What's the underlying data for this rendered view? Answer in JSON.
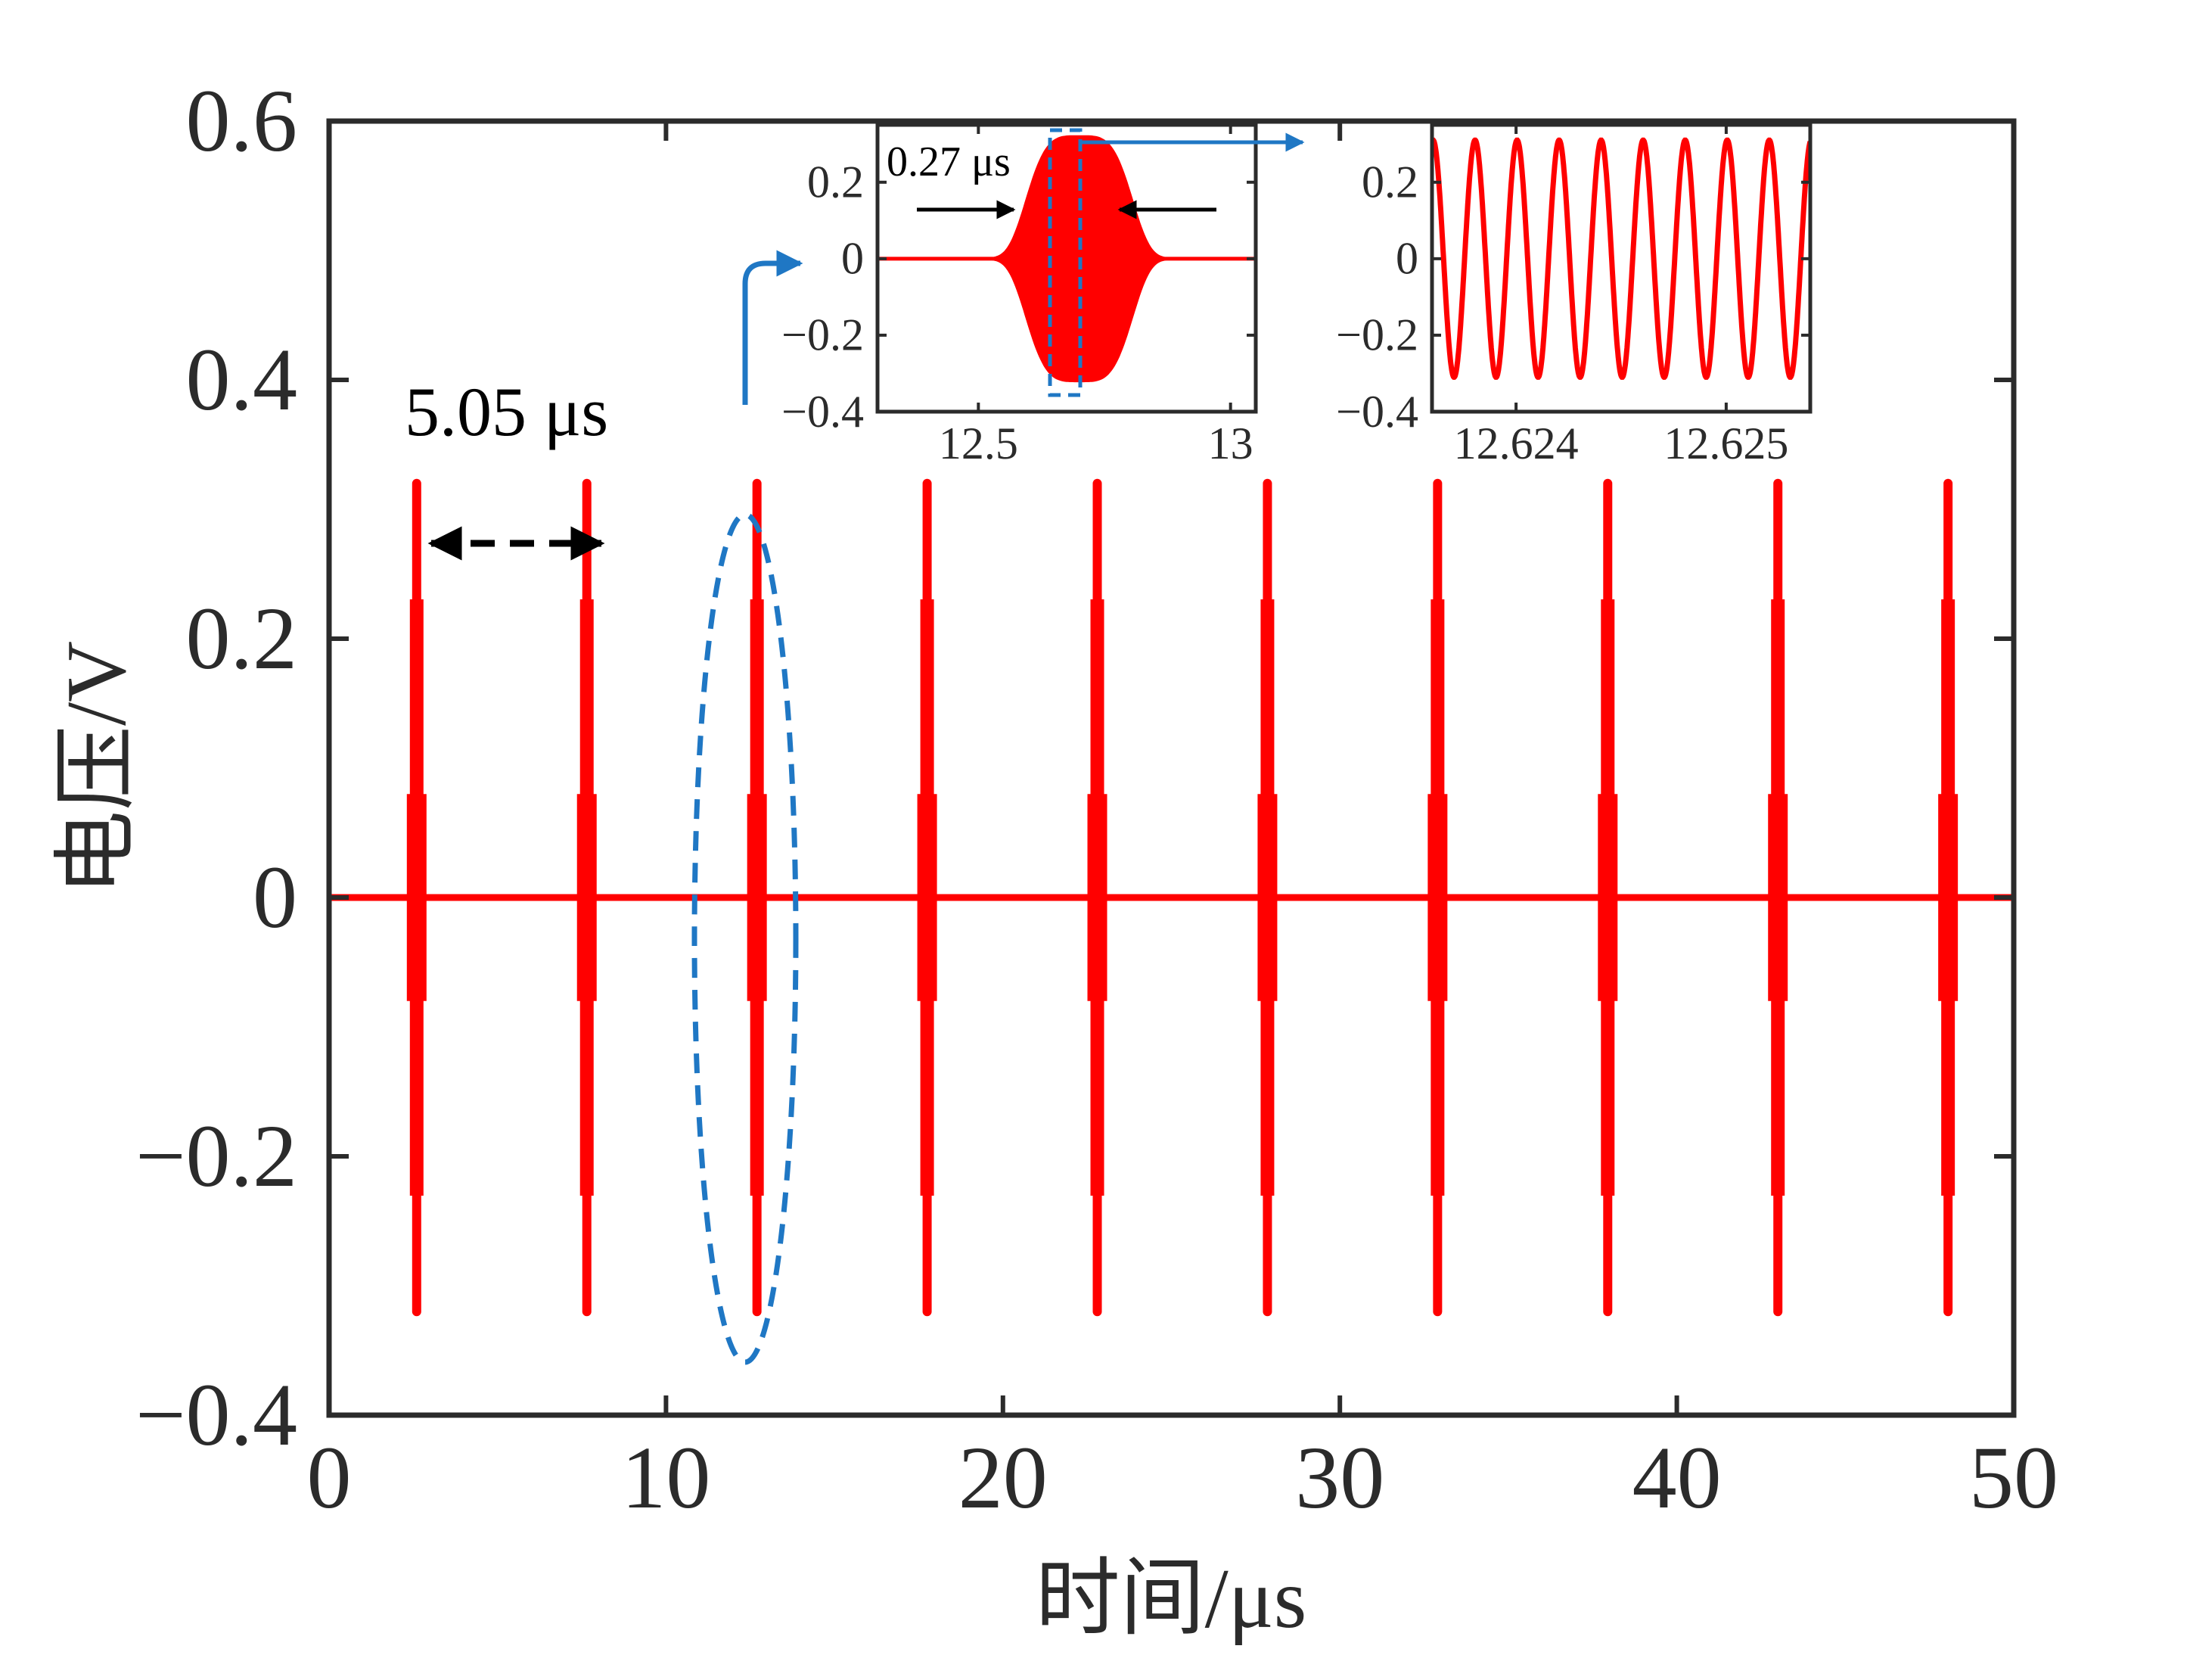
{
  "chart_data": [
    {
      "type": "line",
      "role": "main",
      "xlabel": "时间/μs",
      "ylabel": "电压/V",
      "xlim": [
        0,
        50
      ],
      "ylim": [
        -0.4,
        0.6
      ],
      "xticks": [
        0,
        10,
        20,
        30,
        40,
        50
      ],
      "xtick_labels": [
        "0",
        "10",
        "20",
        "30",
        "40",
        "50"
      ],
      "yticks": [
        -0.4,
        -0.2,
        0,
        0.2,
        0.4,
        0.6
      ],
      "ytick_labels": [
        "−0.4",
        "−0.2",
        "0",
        "0.2",
        "0.4",
        "0.6"
      ],
      "grid": false,
      "series": [
        {
          "color": "#ff0000",
          "pulse_centers": [
            2.6,
            7.65,
            12.7,
            17.75,
            22.8,
            27.85,
            32.9,
            37.95,
            43.0,
            48.05
          ],
          "pulse_amplitude": 0.32,
          "baseline": 0
        }
      ],
      "annotations": {
        "period": "5.05 μs"
      }
    },
    {
      "type": "line",
      "role": "inset-zoom-1",
      "xlim": [
        12.3,
        13.05
      ],
      "ylim": [
        -0.4,
        0.35
      ],
      "xticks": [
        12.5,
        13
      ],
      "xtick_labels": [
        "12.5",
        "13"
      ],
      "yticks": [
        -0.4,
        -0.2,
        0,
        0.2
      ],
      "ytick_labels": [
        "−0.4",
        "−0.2",
        "0",
        "0.2"
      ],
      "series": [
        {
          "color": "#ff0000",
          "pulse_center": 12.7,
          "pulse_amplitude": 0.32
        }
      ],
      "annotations": {
        "pulse_width": "0.27 μs"
      }
    },
    {
      "type": "line",
      "role": "inset-zoom-2",
      "xlim": [
        12.6236,
        12.6254
      ],
      "ylim": [
        -0.4,
        0.35
      ],
      "xticks": [
        12.624,
        12.625
      ],
      "xtick_labels": [
        "12.624",
        "12.625"
      ],
      "yticks": [
        -0.4,
        -0.2,
        0,
        0.2
      ],
      "ytick_labels": [
        "−0.4",
        "−0.2",
        "0",
        "0.2"
      ],
      "series": [
        {
          "color": "#ff0000",
          "amplitude": 0.31,
          "cycles_shown": 9
        }
      ]
    }
  ],
  "colors": {
    "signal": "#ff0000",
    "annotation_blue": "#1f77c4",
    "axes": "#2b2b2b"
  }
}
